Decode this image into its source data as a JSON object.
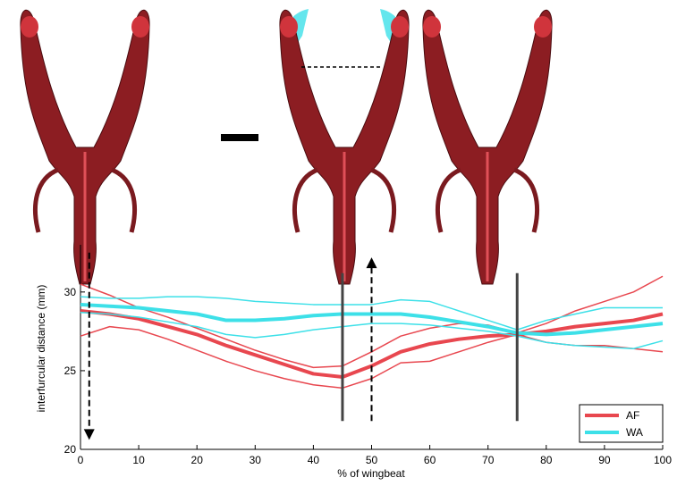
{
  "chart_data": {
    "type": "line",
    "xlabel": "% of wingbeat",
    "ylabel": "interfurcular distance (mm)",
    "x": [
      0,
      5,
      10,
      15,
      20,
      25,
      30,
      35,
      40,
      45,
      50,
      55,
      60,
      65,
      70,
      75,
      80,
      85,
      90,
      95,
      100
    ],
    "xlim": [
      0,
      100
    ],
    "xticks": [
      0,
      10,
      20,
      30,
      40,
      50,
      60,
      70,
      80,
      90,
      100
    ],
    "ylim": [
      20,
      33
    ],
    "yticks": [
      20,
      25,
      30
    ],
    "legend": "lower right",
    "series": [
      {
        "name": "AF",
        "color": "#e8474f",
        "values": [
          28.8,
          28.6,
          28.3,
          27.8,
          27.3,
          26.6,
          26.0,
          25.4,
          24.8,
          24.6,
          25.3,
          26.2,
          26.7,
          27.0,
          27.2,
          27.3,
          27.5,
          27.8,
          28.0,
          28.2,
          28.6
        ],
        "upper": [
          30.5,
          29.8,
          29.0,
          28.4,
          27.7,
          27.0,
          26.3,
          25.7,
          25.2,
          25.3,
          26.2,
          27.2,
          27.7,
          28.0,
          27.9,
          27.4,
          28.0,
          28.8,
          29.4,
          30.0,
          31.0
        ],
        "lower": [
          27.2,
          27.8,
          27.6,
          27.0,
          26.3,
          25.6,
          25.0,
          24.5,
          24.1,
          23.9,
          24.5,
          25.5,
          25.6,
          26.2,
          26.8,
          27.3,
          26.8,
          26.6,
          26.6,
          26.4,
          26.2
        ]
      },
      {
        "name": "WA",
        "color": "#3de0e8",
        "values": [
          29.2,
          29.1,
          29.0,
          28.8,
          28.6,
          28.2,
          28.2,
          28.3,
          28.5,
          28.6,
          28.6,
          28.6,
          28.4,
          28.1,
          27.8,
          27.4,
          27.3,
          27.4,
          27.6,
          27.8,
          28.0
        ],
        "upper": [
          29.7,
          29.6,
          29.6,
          29.7,
          29.7,
          29.6,
          29.4,
          29.3,
          29.2,
          29.2,
          29.2,
          29.5,
          29.4,
          28.8,
          28.2,
          27.6,
          28.2,
          28.6,
          29.0,
          29.0,
          29.0
        ],
        "lower": [
          28.7,
          28.6,
          28.4,
          28.1,
          27.8,
          27.3,
          27.1,
          27.3,
          27.6,
          27.8,
          28.0,
          28.0,
          27.9,
          27.7,
          27.5,
          27.2,
          26.8,
          26.6,
          26.5,
          26.4,
          26.9
        ]
      }
    ],
    "vlines": [
      45,
      75
    ],
    "vline_range": [
      21.8,
      31.2
    ],
    "arrows": [
      {
        "x": 1.5,
        "from": 32.5,
        "to": 20.6
      },
      {
        "x": 50,
        "from": 21.8,
        "to": 32.2
      }
    ]
  }
}
